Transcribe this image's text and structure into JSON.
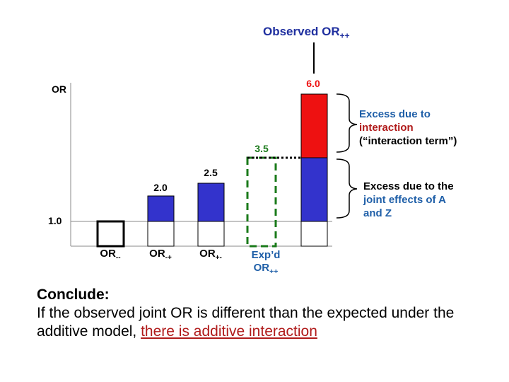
{
  "top_label": {
    "text": "Observed OR",
    "sub": "++"
  },
  "y_axis_label": "OR",
  "baseline_label": "1.0",
  "annotations": {
    "interaction": {
      "line1": "Excess due to",
      "line2": "interaction",
      "line3": "(“interaction term”)"
    },
    "joint": {
      "line1": "Excess due to the",
      "line2": "joint effects of A",
      "line3": "and Z"
    }
  },
  "conclusion": {
    "heading": "Conclude:",
    "text": "If the observed joint OR is different than the expected under the additive model,",
    "highlight": "there is additive interaction"
  },
  "colors": {
    "blue": "#3333cc",
    "red": "#ee1111",
    "green": "#1a7a1a",
    "annotation_blue": "#1f5fa8",
    "annotation_red": "#b01a1a"
  },
  "chart_data": {
    "type": "bar",
    "baseline": 1.0,
    "bars": [
      {
        "key": "or00",
        "label": "OR",
        "sub": "--",
        "value": 1.0,
        "value_label": ""
      },
      {
        "key": "or01",
        "label": "OR",
        "sub": "-+",
        "value": 2.0,
        "value_label": "2.0"
      },
      {
        "key": "or10",
        "label": "OR",
        "sub": "+-",
        "value": 2.5,
        "value_label": "2.5"
      },
      {
        "key": "expected",
        "label": "Exp’d OR",
        "sub": "++",
        "value": 3.5,
        "value_label": "3.5"
      },
      {
        "key": "observed",
        "label": "",
        "sub": "",
        "value": 6.0,
        "value_label": "6.0"
      }
    ]
  }
}
